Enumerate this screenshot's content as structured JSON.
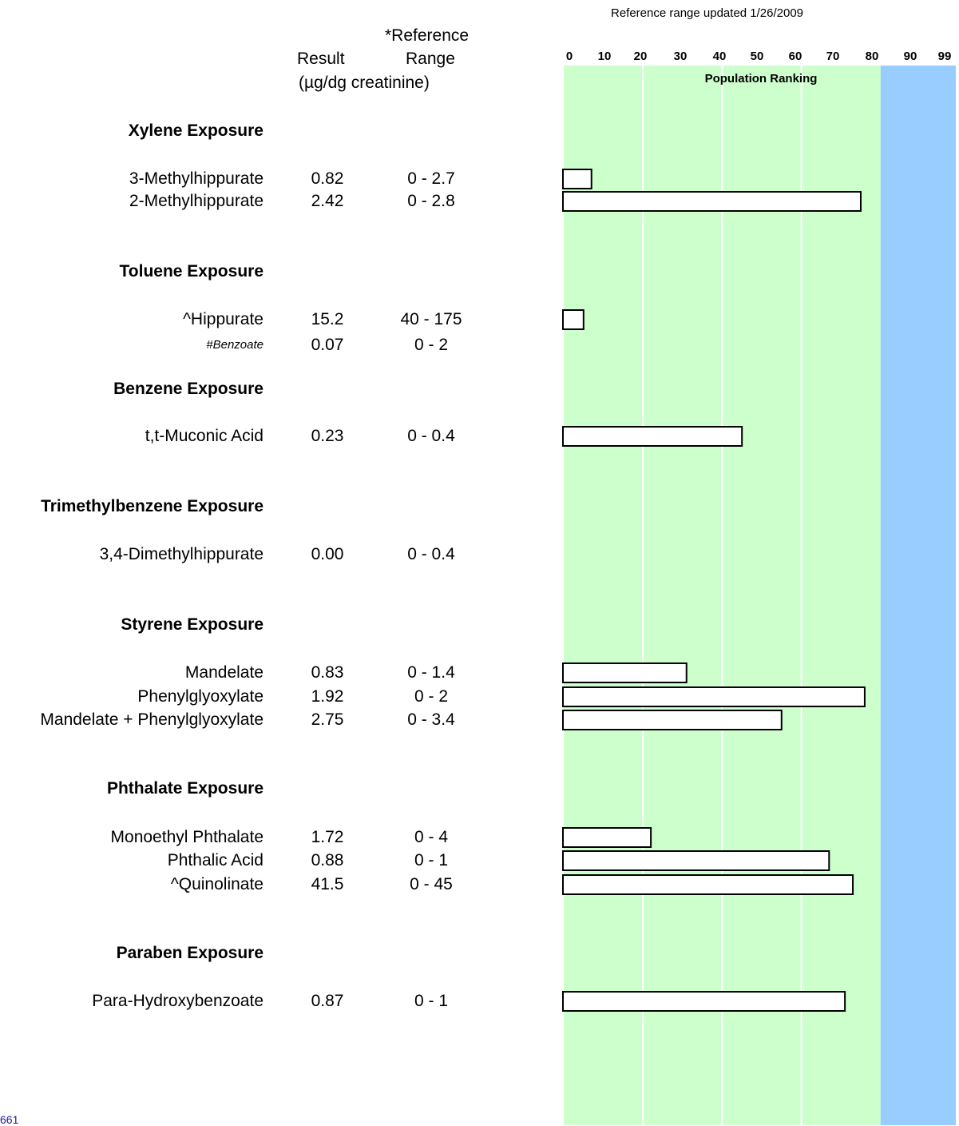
{
  "report": {
    "reference_note": "Reference range updated 1/26/2009",
    "col_result": "Result",
    "col_reference_line1": "*Reference",
    "col_reference_line2": "Range",
    "col_units": "(µg/dg creatinine)",
    "footer_text": "661"
  },
  "colors": {
    "normal_band": "#ccffcc",
    "high_band": "#99ccff",
    "gridline": "#ffffff",
    "bar_fill": "#ffffff",
    "bar_stroke": "#000000"
  },
  "chart_data": {
    "type": "bar",
    "orientation": "horizontal",
    "title": "Population Ranking",
    "ticks": [
      "0",
      "10",
      "20",
      "30",
      "40",
      "50",
      "60",
      "70",
      "80",
      "90",
      "99"
    ],
    "xlim": [
      0,
      99
    ],
    "bands": [
      {
        "from": 0,
        "to": 80,
        "color": "#ccffcc"
      },
      {
        "from": 80,
        "to": 99,
        "color": "#99ccff"
      }
    ],
    "groups": [
      {
        "title": "Xylene Exposure",
        "analytes": [
          {
            "name": "3-Methylhippurate",
            "result": "0.82",
            "range": "0 - 2.7",
            "ranking": 7
          },
          {
            "name": "2-Methylhippurate",
            "result": "2.42",
            "range": "0 - 2.8",
            "ranking": 75
          }
        ]
      },
      {
        "title": "Toluene Exposure",
        "analytes": [
          {
            "name": "^Hippurate",
            "result": "15.2",
            "range": "40 - 175",
            "ranking": 5
          },
          {
            "name": "#Benzoate",
            "result": "0.07",
            "range": "0 - 2",
            "ranking": null,
            "small": true
          }
        ]
      },
      {
        "title": "Benzene Exposure",
        "analytes": [
          {
            "name": "t,t-Muconic Acid",
            "result": "0.23",
            "range": "0 - 0.4",
            "ranking": 45
          }
        ]
      },
      {
        "title": "Trimethylbenzene Exposure",
        "analytes": [
          {
            "name": "3,4-Dimethylhippurate",
            "result": "0.00",
            "range": "0 - 0.4",
            "ranking": null
          }
        ]
      },
      {
        "title": "Styrene Exposure",
        "analytes": [
          {
            "name": "Mandelate",
            "result": "0.83",
            "range": "0 - 1.4",
            "ranking": 31
          },
          {
            "name": "Phenylglyoxylate",
            "result": "1.92",
            "range": "0 - 2",
            "ranking": 76
          },
          {
            "name": "Mandelate + Phenylglyoxylate",
            "result": "2.75",
            "range": "0 - 3.4",
            "ranking": 55
          }
        ]
      },
      {
        "title": "Phthalate Exposure",
        "analytes": [
          {
            "name": "Monoethyl Phthalate",
            "result": "1.72",
            "range": "0 - 4",
            "ranking": 22
          },
          {
            "name": "Phthalic Acid",
            "result": "0.88",
            "range": "0 - 1",
            "ranking": 67
          },
          {
            "name": "^Quinolinate",
            "result": "41.5",
            "range": "0 - 45",
            "ranking": 73
          }
        ]
      },
      {
        "title": "Paraben Exposure",
        "analytes": [
          {
            "name": "Para-Hydroxybenzoate",
            "result": "0.87",
            "range": "0 - 1",
            "ranking": 71
          }
        ]
      }
    ]
  }
}
